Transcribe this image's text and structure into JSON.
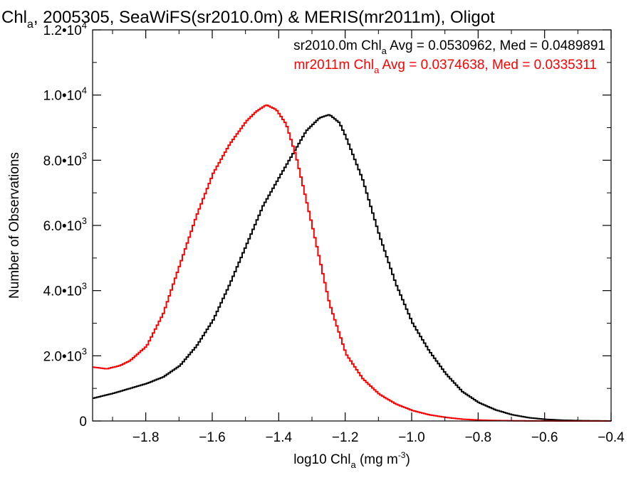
{
  "chart_data": {
    "type": "line",
    "title": {
      "pre": "Chl",
      "sub": "a",
      "post": ", 2005305, SeaWiFS(sr2010.0m) & MERIS(mr2011m), Oligot"
    },
    "xlabel": {
      "pre": "log10 Chl",
      "sub": "a",
      "mid": " (mg m",
      "sup": "-3",
      "post": ")"
    },
    "ylabel": "Number of Observations",
    "xlim": [
      -1.96,
      -0.4
    ],
    "ylim": [
      0,
      12000
    ],
    "x_ticks": [
      {
        "value": -1.8,
        "label": "−1.8"
      },
      {
        "value": -1.6,
        "label": "−1.6"
      },
      {
        "value": -1.4,
        "label": "−1.4"
      },
      {
        "value": -1.2,
        "label": "−1.2"
      },
      {
        "value": -1.0,
        "label": "−1.0"
      },
      {
        "value": -0.8,
        "label": "−0.8"
      },
      {
        "value": -0.6,
        "label": "−0.6"
      },
      {
        "value": -0.4,
        "label": "−0.4"
      }
    ],
    "y_ticks": [
      {
        "value": 0,
        "mantissa": "0",
        "exp": ""
      },
      {
        "value": 2000,
        "mantissa": "2.0•10",
        "exp": "3"
      },
      {
        "value": 4000,
        "mantissa": "4.0•10",
        "exp": "3"
      },
      {
        "value": 6000,
        "mantissa": "6.0•10",
        "exp": "3"
      },
      {
        "value": 8000,
        "mantissa": "8.0•10",
        "exp": "3"
      },
      {
        "value": 10000,
        "mantissa": "1.0•10",
        "exp": "4"
      },
      {
        "value": 12000,
        "mantissa": "1.2•10",
        "exp": "4"
      }
    ],
    "legend_position": "top-right",
    "series": [
      {
        "name": "sr2010.0m",
        "color": "#000000",
        "legend": {
          "pre": "sr2010.0m Chl",
          "sub": "a",
          "post": " Avg = 0.0530962, Med = 0.0489891"
        },
        "x": [
          -1.96,
          -1.9,
          -1.85,
          -1.8,
          -1.75,
          -1.7,
          -1.65,
          -1.6,
          -1.55,
          -1.5,
          -1.45,
          -1.4,
          -1.36,
          -1.32,
          -1.28,
          -1.25,
          -1.22,
          -1.2,
          -1.15,
          -1.1,
          -1.05,
          -1.0,
          -0.95,
          -0.9,
          -0.85,
          -0.8,
          -0.75,
          -0.7,
          -0.65,
          -0.6,
          -0.55,
          -0.5,
          -0.45,
          -0.4
        ],
        "y": [
          700,
          850,
          1000,
          1150,
          1350,
          1700,
          2300,
          3100,
          4200,
          5400,
          6600,
          7500,
          8200,
          8900,
          9300,
          9400,
          9150,
          8700,
          7400,
          5700,
          4200,
          3000,
          2150,
          1450,
          900,
          560,
          340,
          190,
          100,
          50,
          25,
          10,
          5,
          0
        ]
      },
      {
        "name": "mr2011m",
        "color": "#ff0000",
        "legend": {
          "pre": "mr2011m Chl",
          "sub": "a",
          "post": " Avg = 0.0374638, Med = 0.0335311"
        },
        "x": [
          -1.96,
          -1.92,
          -1.88,
          -1.85,
          -1.8,
          -1.75,
          -1.7,
          -1.65,
          -1.6,
          -1.55,
          -1.5,
          -1.47,
          -1.44,
          -1.41,
          -1.38,
          -1.35,
          -1.3,
          -1.25,
          -1.2,
          -1.15,
          -1.1,
          -1.05,
          -1.0,
          -0.95,
          -0.9,
          -0.85,
          -0.8,
          -0.75,
          -0.7,
          -0.65,
          -0.6,
          -0.55,
          -0.5,
          -0.45,
          -0.4
        ],
        "y": [
          1650,
          1600,
          1700,
          1850,
          2300,
          3300,
          4800,
          6300,
          7600,
          8500,
          9200,
          9500,
          9700,
          9550,
          9100,
          8100,
          5900,
          3600,
          2050,
          1300,
          820,
          520,
          320,
          190,
          110,
          55,
          28,
          14,
          7,
          3,
          2,
          1,
          1,
          0,
          0
        ]
      }
    ]
  }
}
